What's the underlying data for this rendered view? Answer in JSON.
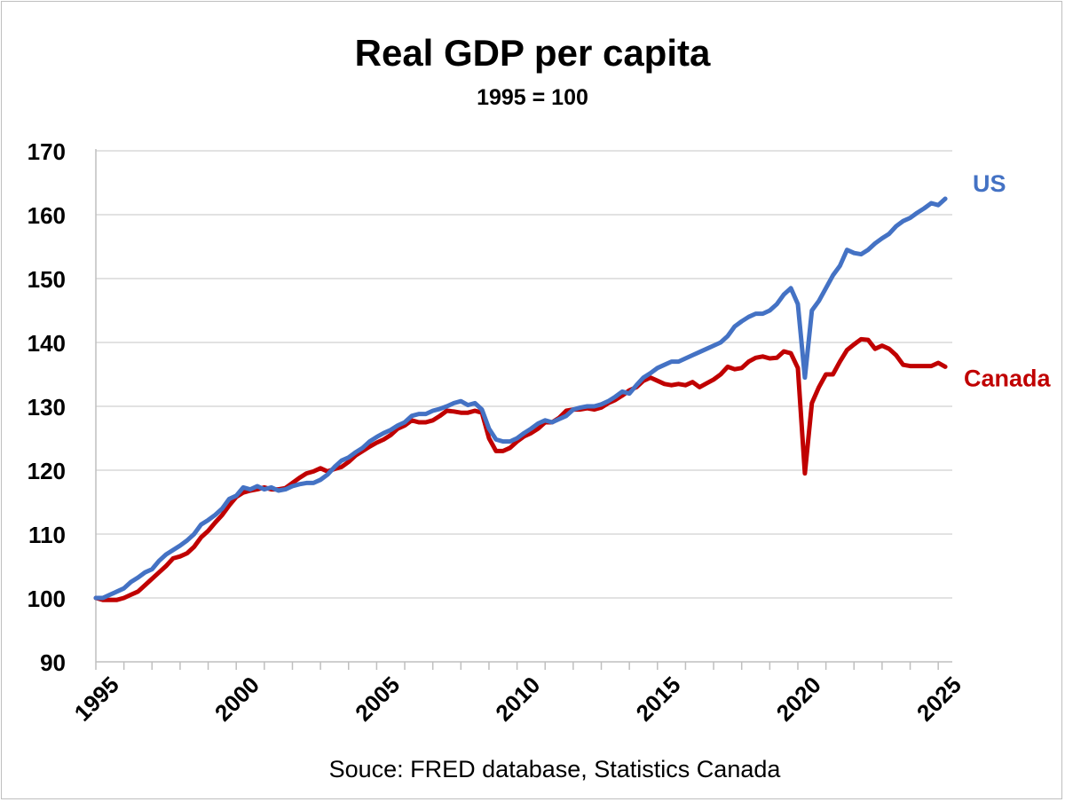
{
  "chart_data": {
    "type": "line",
    "title": "Real GDP per capita",
    "subtitle": "1995 = 100",
    "source": "Souce: FRED database, Statistics Canada",
    "x_ticks": [
      "1995",
      "2000",
      "2005",
      "2010",
      "2015",
      "2020",
      "2025"
    ],
    "xlim": [
      1995.0,
      2025.5
    ],
    "ylim": [
      90,
      170
    ],
    "y_ticks": [
      90,
      100,
      110,
      120,
      130,
      140,
      150,
      160,
      170
    ],
    "grid": "horizontal",
    "legend": "direct-labels-right",
    "series": [
      {
        "name": "US",
        "color": "#4472c4",
        "points": [
          [
            1995.0,
            100.0
          ],
          [
            1995.25,
            100.0
          ],
          [
            1995.5,
            100.5
          ],
          [
            1995.75,
            101.0
          ],
          [
            1996.0,
            101.5
          ],
          [
            1996.25,
            102.5
          ],
          [
            1996.5,
            103.2
          ],
          [
            1996.75,
            104.0
          ],
          [
            1997.0,
            104.5
          ],
          [
            1997.25,
            105.8
          ],
          [
            1997.5,
            106.8
          ],
          [
            1997.75,
            107.5
          ],
          [
            1998.0,
            108.2
          ],
          [
            1998.25,
            109.0
          ],
          [
            1998.5,
            110.0
          ],
          [
            1998.75,
            111.5
          ],
          [
            1999.0,
            112.2
          ],
          [
            1999.25,
            113.0
          ],
          [
            1999.5,
            114.0
          ],
          [
            1999.75,
            115.5
          ],
          [
            2000.0,
            116.0
          ],
          [
            2000.25,
            117.3
          ],
          [
            2000.5,
            117.0
          ],
          [
            2000.75,
            117.5
          ],
          [
            2001.0,
            117.0
          ],
          [
            2001.25,
            117.3
          ],
          [
            2001.5,
            116.8
          ],
          [
            2001.75,
            117.0
          ],
          [
            2002.0,
            117.5
          ],
          [
            2002.25,
            117.8
          ],
          [
            2002.5,
            118.0
          ],
          [
            2002.75,
            118.0
          ],
          [
            2003.0,
            118.5
          ],
          [
            2003.25,
            119.3
          ],
          [
            2003.5,
            120.5
          ],
          [
            2003.75,
            121.5
          ],
          [
            2004.0,
            122.0
          ],
          [
            2004.25,
            122.8
          ],
          [
            2004.5,
            123.5
          ],
          [
            2004.75,
            124.5
          ],
          [
            2005.0,
            125.2
          ],
          [
            2005.25,
            125.8
          ],
          [
            2005.5,
            126.3
          ],
          [
            2005.75,
            127.0
          ],
          [
            2006.0,
            127.5
          ],
          [
            2006.25,
            128.5
          ],
          [
            2006.5,
            128.8
          ],
          [
            2006.75,
            128.8
          ],
          [
            2007.0,
            129.3
          ],
          [
            2007.25,
            129.6
          ],
          [
            2007.5,
            130.0
          ],
          [
            2007.75,
            130.5
          ],
          [
            2008.0,
            130.8
          ],
          [
            2008.25,
            130.2
          ],
          [
            2008.5,
            130.5
          ],
          [
            2008.75,
            129.5
          ],
          [
            2009.0,
            126.5
          ],
          [
            2009.25,
            124.8
          ],
          [
            2009.5,
            124.5
          ],
          [
            2009.75,
            124.5
          ],
          [
            2010.0,
            125.0
          ],
          [
            2010.25,
            125.8
          ],
          [
            2010.5,
            126.5
          ],
          [
            2010.75,
            127.3
          ],
          [
            2011.0,
            127.8
          ],
          [
            2011.25,
            127.5
          ],
          [
            2011.5,
            128.0
          ],
          [
            2011.75,
            128.5
          ],
          [
            2012.0,
            129.5
          ],
          [
            2012.25,
            129.8
          ],
          [
            2012.5,
            130.0
          ],
          [
            2012.75,
            130.0
          ],
          [
            2013.0,
            130.3
          ],
          [
            2013.25,
            130.8
          ],
          [
            2013.5,
            131.5
          ],
          [
            2013.75,
            132.3
          ],
          [
            2014.0,
            132.0
          ],
          [
            2014.25,
            133.3
          ],
          [
            2014.5,
            134.5
          ],
          [
            2014.75,
            135.2
          ],
          [
            2015.0,
            136.0
          ],
          [
            2015.25,
            136.5
          ],
          [
            2015.5,
            137.0
          ],
          [
            2015.75,
            137.0
          ],
          [
            2016.0,
            137.5
          ],
          [
            2016.25,
            138.0
          ],
          [
            2016.5,
            138.5
          ],
          [
            2016.75,
            139.0
          ],
          [
            2017.0,
            139.5
          ],
          [
            2017.25,
            140.0
          ],
          [
            2017.5,
            141.0
          ],
          [
            2017.75,
            142.5
          ],
          [
            2018.0,
            143.3
          ],
          [
            2018.25,
            144.0
          ],
          [
            2018.5,
            144.5
          ],
          [
            2018.75,
            144.5
          ],
          [
            2019.0,
            145.0
          ],
          [
            2019.25,
            146.0
          ],
          [
            2019.5,
            147.5
          ],
          [
            2019.75,
            148.5
          ],
          [
            2020.0,
            146.0
          ],
          [
            2020.25,
            134.5
          ],
          [
            2020.5,
            145.0
          ],
          [
            2020.75,
            146.5
          ],
          [
            2021.0,
            148.5
          ],
          [
            2021.25,
            150.5
          ],
          [
            2021.5,
            152.0
          ],
          [
            2021.75,
            154.5
          ],
          [
            2022.0,
            154.0
          ],
          [
            2022.25,
            153.8
          ],
          [
            2022.5,
            154.5
          ],
          [
            2022.75,
            155.5
          ],
          [
            2023.0,
            156.3
          ],
          [
            2023.25,
            157.0
          ],
          [
            2023.5,
            158.2
          ],
          [
            2023.75,
            159.0
          ],
          [
            2024.0,
            159.5
          ],
          [
            2024.25,
            160.3
          ],
          [
            2024.5,
            161.0
          ],
          [
            2024.75,
            161.8
          ],
          [
            2025.0,
            161.5
          ],
          [
            2025.25,
            162.5
          ]
        ]
      },
      {
        "name": "Canada",
        "color": "#c00000",
        "points": [
          [
            1995.0,
            100.0
          ],
          [
            1995.25,
            99.7
          ],
          [
            1995.5,
            99.7
          ],
          [
            1995.75,
            99.7
          ],
          [
            1996.0,
            100.0
          ],
          [
            1996.25,
            100.5
          ],
          [
            1996.5,
            101.0
          ],
          [
            1996.75,
            102.0
          ],
          [
            1997.0,
            103.0
          ],
          [
            1997.25,
            104.0
          ],
          [
            1997.5,
            105.0
          ],
          [
            1997.75,
            106.2
          ],
          [
            1998.0,
            106.5
          ],
          [
            1998.25,
            107.0
          ],
          [
            1998.5,
            108.0
          ],
          [
            1998.75,
            109.5
          ],
          [
            1999.0,
            110.5
          ],
          [
            1999.25,
            111.8
          ],
          [
            1999.5,
            113.0
          ],
          [
            1999.75,
            114.5
          ],
          [
            2000.0,
            115.8
          ],
          [
            2000.25,
            116.5
          ],
          [
            2000.5,
            116.8
          ],
          [
            2000.75,
            117.0
          ],
          [
            2001.0,
            117.3
          ],
          [
            2001.25,
            117.0
          ],
          [
            2001.5,
            117.0
          ],
          [
            2001.75,
            117.2
          ],
          [
            2002.0,
            118.0
          ],
          [
            2002.25,
            118.8
          ],
          [
            2002.5,
            119.5
          ],
          [
            2002.75,
            119.8
          ],
          [
            2003.0,
            120.3
          ],
          [
            2003.25,
            119.8
          ],
          [
            2003.5,
            120.2
          ],
          [
            2003.75,
            120.5
          ],
          [
            2004.0,
            121.3
          ],
          [
            2004.25,
            122.3
          ],
          [
            2004.5,
            123.0
          ],
          [
            2004.75,
            123.7
          ],
          [
            2005.0,
            124.3
          ],
          [
            2005.25,
            124.8
          ],
          [
            2005.5,
            125.5
          ],
          [
            2005.75,
            126.5
          ],
          [
            2006.0,
            127.0
          ],
          [
            2006.25,
            127.8
          ],
          [
            2006.5,
            127.5
          ],
          [
            2006.75,
            127.5
          ],
          [
            2007.0,
            127.8
          ],
          [
            2007.25,
            128.5
          ],
          [
            2007.5,
            129.3
          ],
          [
            2007.75,
            129.2
          ],
          [
            2008.0,
            129.0
          ],
          [
            2008.25,
            129.0
          ],
          [
            2008.5,
            129.3
          ],
          [
            2008.75,
            129.0
          ],
          [
            2009.0,
            125.0
          ],
          [
            2009.25,
            123.0
          ],
          [
            2009.5,
            123.0
          ],
          [
            2009.75,
            123.5
          ],
          [
            2010.0,
            124.5
          ],
          [
            2010.25,
            125.3
          ],
          [
            2010.5,
            125.8
          ],
          [
            2010.75,
            126.5
          ],
          [
            2011.0,
            127.5
          ],
          [
            2011.25,
            127.5
          ],
          [
            2011.5,
            128.2
          ],
          [
            2011.75,
            129.3
          ],
          [
            2012.0,
            129.5
          ],
          [
            2012.25,
            129.5
          ],
          [
            2012.5,
            129.7
          ],
          [
            2012.75,
            129.5
          ],
          [
            2013.0,
            129.8
          ],
          [
            2013.25,
            130.5
          ],
          [
            2013.5,
            131.0
          ],
          [
            2013.75,
            131.7
          ],
          [
            2014.0,
            132.5
          ],
          [
            2014.25,
            133.0
          ],
          [
            2014.5,
            134.0
          ],
          [
            2014.75,
            134.5
          ],
          [
            2015.0,
            134.0
          ],
          [
            2015.25,
            133.5
          ],
          [
            2015.5,
            133.3
          ],
          [
            2015.75,
            133.5
          ],
          [
            2016.0,
            133.3
          ],
          [
            2016.25,
            133.8
          ],
          [
            2016.5,
            133.0
          ],
          [
            2016.75,
            133.6
          ],
          [
            2017.0,
            134.2
          ],
          [
            2017.25,
            135.0
          ],
          [
            2017.5,
            136.2
          ],
          [
            2017.75,
            135.8
          ],
          [
            2018.0,
            136.0
          ],
          [
            2018.25,
            137.0
          ],
          [
            2018.5,
            137.6
          ],
          [
            2018.75,
            137.8
          ],
          [
            2019.0,
            137.5
          ],
          [
            2019.25,
            137.6
          ],
          [
            2019.5,
            138.6
          ],
          [
            2019.75,
            138.3
          ],
          [
            2020.0,
            136.0
          ],
          [
            2020.25,
            119.5
          ],
          [
            2020.5,
            130.5
          ],
          [
            2020.75,
            133.0
          ],
          [
            2021.0,
            135.0
          ],
          [
            2021.25,
            135.0
          ],
          [
            2021.5,
            137.0
          ],
          [
            2021.75,
            138.8
          ],
          [
            2022.0,
            139.7
          ],
          [
            2022.25,
            140.5
          ],
          [
            2022.5,
            140.4
          ],
          [
            2022.75,
            139.0
          ],
          [
            2023.0,
            139.5
          ],
          [
            2023.25,
            139.0
          ],
          [
            2023.5,
            138.0
          ],
          [
            2023.75,
            136.5
          ],
          [
            2024.0,
            136.3
          ],
          [
            2024.25,
            136.3
          ],
          [
            2024.5,
            136.3
          ],
          [
            2024.75,
            136.3
          ],
          [
            2025.0,
            136.8
          ],
          [
            2025.25,
            136.2
          ]
        ]
      }
    ]
  }
}
